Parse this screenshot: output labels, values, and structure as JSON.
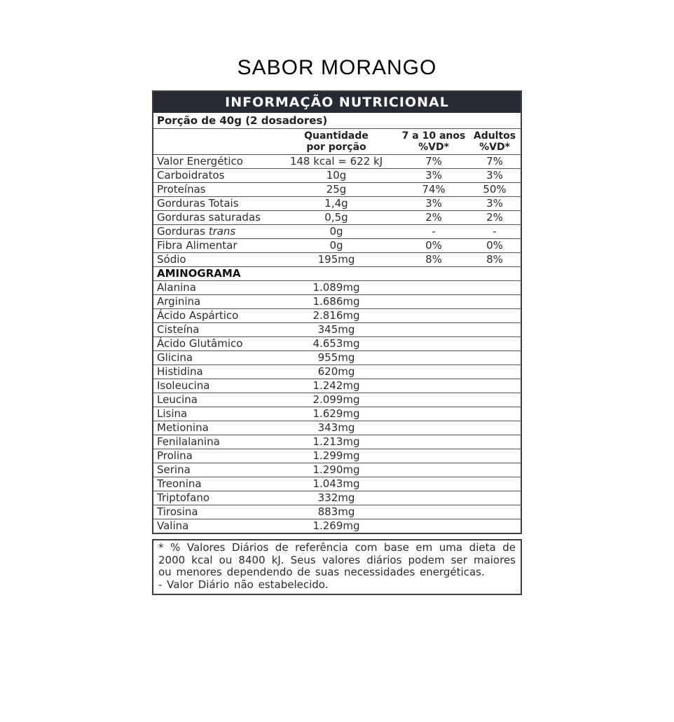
{
  "title": "SABOR MORANGO",
  "table": {
    "header": "INFORMAÇÃO NUTRICIONAL",
    "portion": "Porção de 40g (2 dosadores)",
    "columns": {
      "quantity_line1": "Quantidade",
      "quantity_line2": "por porção",
      "kids_line1": "7 a 10 anos",
      "kids_line2": "%VD*",
      "adults_line1": "Adultos",
      "adults_line2": "%VD*"
    },
    "nutrients": [
      {
        "name": "Valor Energético",
        "qty": "148 kcal = 622 kJ",
        "kids": "7%",
        "adults": "7%"
      },
      {
        "name": "Carboidratos",
        "qty": "10g",
        "kids": "3%",
        "adults": "3%"
      },
      {
        "name": "Proteínas",
        "qty": "25g",
        "kids": "74%",
        "adults": "50%"
      },
      {
        "name": "Gorduras Totais",
        "qty": "1,4g",
        "kids": "3%",
        "adults": "3%"
      },
      {
        "name": "Gorduras saturadas",
        "qty": "0,5g",
        "kids": "2%",
        "adults": "2%"
      },
      {
        "name": "Gorduras ",
        "name_italic": "trans",
        "qty": "0g",
        "kids": "-",
        "adults": "-"
      },
      {
        "name": "Fibra Alimentar",
        "qty": "0g",
        "kids": "0%",
        "adults": "0%"
      },
      {
        "name": "Sódio",
        "qty": "195mg",
        "kids": "8%",
        "adults": "8%"
      }
    ],
    "aminogram_header": "AMINOGRAMA",
    "aminogram": [
      {
        "name": "Alanina",
        "qty": "1.089mg"
      },
      {
        "name": "Arginina",
        "qty": "1.686mg"
      },
      {
        "name": "Ácido Aspártico",
        "qty": "2.816mg"
      },
      {
        "name": "Cisteína",
        "qty": "345mg"
      },
      {
        "name": "Ácido Glutâmico",
        "qty": "4.653mg"
      },
      {
        "name": "Glicina",
        "qty": "955mg"
      },
      {
        "name": "Histidina",
        "qty": "620mg"
      },
      {
        "name": "Isoleucina",
        "qty": "1.242mg"
      },
      {
        "name": "Leucina",
        "qty": "2.099mg"
      },
      {
        "name": "Lisina",
        "qty": "1.629mg"
      },
      {
        "name": "Metionina",
        "qty": "343mg"
      },
      {
        "name": "Fenilalanina",
        "qty": "1.213mg"
      },
      {
        "name": "Prolina",
        "qty": "1.299mg"
      },
      {
        "name": "Serina",
        "qty": "1.290mg"
      },
      {
        "name": "Treonina",
        "qty": "1.043mg"
      },
      {
        "name": "Triptofano",
        "qty": "332mg"
      },
      {
        "name": "Tirosina",
        "qty": "883mg"
      },
      {
        "name": "Valina",
        "qty": "1.269mg"
      }
    ]
  },
  "footnote": {
    "paragraph": "* % Valores Diários de referência com base em uma dieta de 2000 kcal ou 8400 kJ. Seus valores diários podem ser maiores ou menores dependendo de suas necessidades energéticas.",
    "dash_line": "- Valor Diário não estabelecido."
  },
  "colors": {
    "header_bg": "#262b33",
    "header_text": "#ffffff",
    "body_text": "#2d2d2d",
    "border": "#3e3e3e",
    "row_divider": "#555555"
  }
}
